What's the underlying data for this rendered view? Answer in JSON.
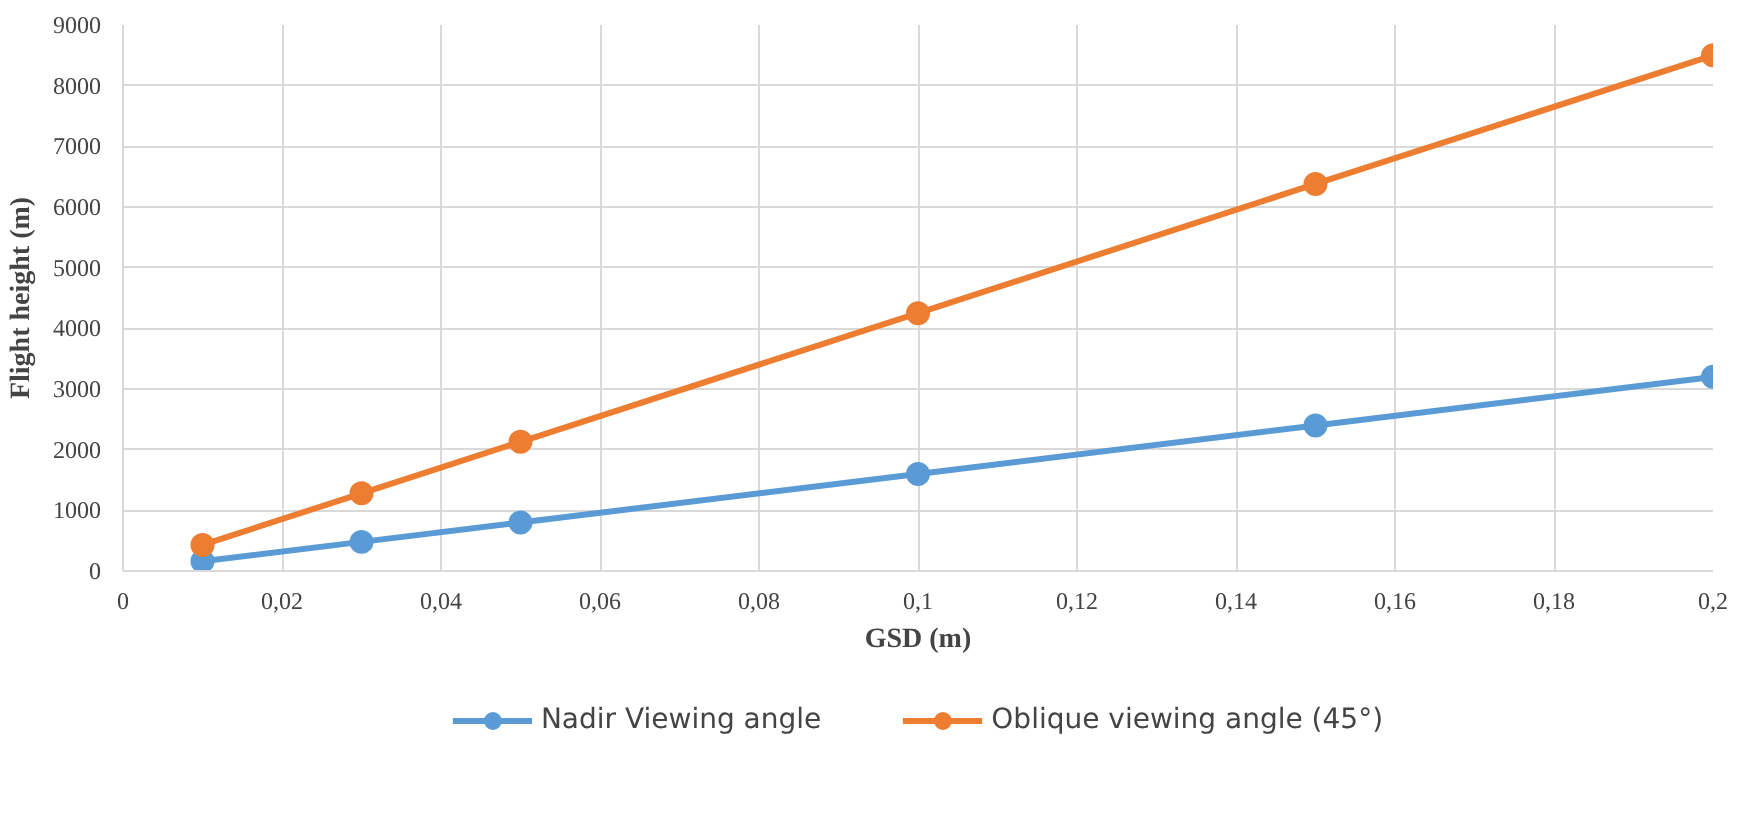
{
  "chart_data": {
    "type": "line",
    "xlabel": "GSD (m)",
    "ylabel": "Flight height (m)",
    "x": [
      0.01,
      0.03,
      0.05,
      0.1,
      0.15,
      0.2
    ],
    "series": [
      {
        "name": "Nadir Viewing angle",
        "color": "#5b9bd5",
        "values": [
          160,
          480,
          800,
          1600,
          2400,
          3200
        ]
      },
      {
        "name": "Oblique viewing angle (45°)",
        "color": "#ed7d31",
        "values": [
          430,
          1280,
          2130,
          4250,
          6380,
          8500
        ]
      }
    ],
    "xlim": [
      0,
      0.2
    ],
    "ylim": [
      0,
      9000
    ],
    "xticks": [
      0,
      {
        "value": 0.02,
        "label": "0,02"
      },
      {
        "value": 0.04,
        "label": "0,04"
      },
      {
        "value": 0.06,
        "label": "0,06"
      },
      {
        "value": 0.08,
        "label": "0,08"
      },
      {
        "value": 0.1,
        "label": "0,1"
      },
      {
        "value": 0.12,
        "label": "0,12"
      },
      {
        "value": 0.14,
        "label": "0,14"
      },
      {
        "value": 0.16,
        "label": "0,16"
      },
      {
        "value": 0.18,
        "label": "0,18"
      },
      {
        "value": 0.2,
        "label": "0,2"
      }
    ],
    "yticks": [
      0,
      1000,
      2000,
      3000,
      4000,
      5000,
      6000,
      7000,
      8000,
      9000
    ],
    "grid": true,
    "legend": "bottom",
    "marker": "circle",
    "line_style": "solid"
  }
}
